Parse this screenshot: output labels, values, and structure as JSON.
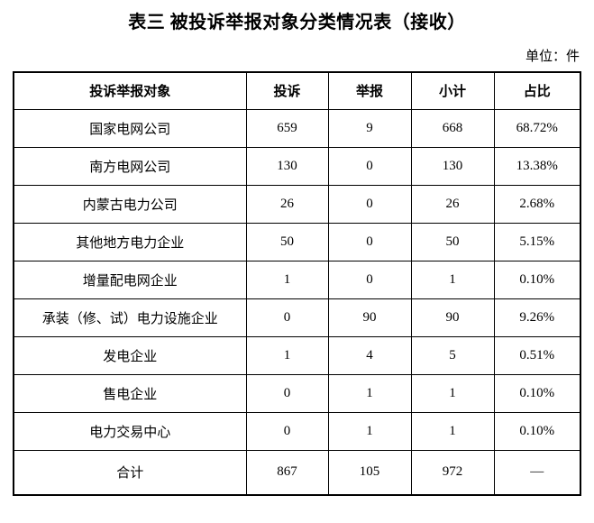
{
  "title": "表三 被投诉举报对象分类情况表（接收）",
  "unit_label": "单位：件",
  "table": {
    "headers": [
      "投诉举报对象",
      "投诉",
      "举报",
      "小计",
      "占比"
    ],
    "rows": [
      {
        "target": "国家电网公司",
        "complaints": "659",
        "reports": "9",
        "subtotal": "668",
        "share": "68.72%"
      },
      {
        "target": "南方电网公司",
        "complaints": "130",
        "reports": "0",
        "subtotal": "130",
        "share": "13.38%"
      },
      {
        "target": "内蒙古电力公司",
        "complaints": "26",
        "reports": "0",
        "subtotal": "26",
        "share": "2.68%"
      },
      {
        "target": "其他地方电力企业",
        "complaints": "50",
        "reports": "0",
        "subtotal": "50",
        "share": "5.15%"
      },
      {
        "target": "增量配电网企业",
        "complaints": "1",
        "reports": "0",
        "subtotal": "1",
        "share": "0.10%"
      },
      {
        "target": "承装（修、试）电力设施企业",
        "complaints": "0",
        "reports": "90",
        "subtotal": "90",
        "share": "9.26%"
      },
      {
        "target": "发电企业",
        "complaints": "1",
        "reports": "4",
        "subtotal": "5",
        "share": "0.51%"
      },
      {
        "target": "售电企业",
        "complaints": "0",
        "reports": "1",
        "subtotal": "1",
        "share": "0.10%"
      },
      {
        "target": "电力交易中心",
        "complaints": "0",
        "reports": "1",
        "subtotal": "1",
        "share": "0.10%"
      },
      {
        "target": "合计",
        "complaints": "867",
        "reports": "105",
        "subtotal": "972",
        "share": "—",
        "is_total": true
      }
    ]
  }
}
